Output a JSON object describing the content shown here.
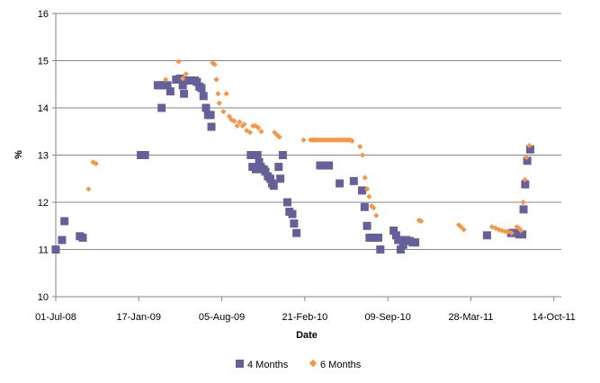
{
  "chart_data": {
    "type": "scatter",
    "title": "",
    "xlabel": "Date",
    "ylabel": "%",
    "ylim": [
      10,
      16
    ],
    "yticks": [
      "10",
      "11",
      "12",
      "13",
      "14",
      "15",
      "16"
    ],
    "xlim": [
      "2008-07-01",
      "2011-11-01"
    ],
    "xticks": [
      "01-Jul-08",
      "17-Jan-09",
      "05-Aug-09",
      "21-Feb-10",
      "09-Sep-10",
      "28-Mar-11",
      "14-Oct-11"
    ],
    "grid": "horizontal",
    "legend_position": "bottom",
    "series": [
      {
        "name": "4 Months",
        "color": "#65609A",
        "marker": "square",
        "points": [
          [
            "2008-07-01",
            11.0
          ],
          [
            "2008-07-16",
            11.2
          ],
          [
            "2008-07-22",
            11.6
          ],
          [
            "2008-08-28",
            11.28
          ],
          [
            "2008-09-04",
            11.25
          ],
          [
            "2009-01-22",
            13.0
          ],
          [
            "2009-02-01",
            13.0
          ],
          [
            "2009-03-04",
            14.48
          ],
          [
            "2009-03-11",
            14.48
          ],
          [
            "2009-03-13",
            14.0
          ],
          [
            "2009-03-19",
            14.48
          ],
          [
            "2009-03-27",
            14.48
          ],
          [
            "2009-04-03",
            14.35
          ],
          [
            "2009-04-17",
            14.6
          ],
          [
            "2009-04-26",
            14.62
          ],
          [
            "2009-05-03",
            14.48
          ],
          [
            "2009-05-06",
            14.3
          ],
          [
            "2009-05-10",
            14.58
          ],
          [
            "2009-05-17",
            14.58
          ],
          [
            "2009-05-24",
            14.58
          ],
          [
            "2009-06-01",
            14.58
          ],
          [
            "2009-06-06",
            14.55
          ],
          [
            "2009-06-12",
            14.45
          ],
          [
            "2009-06-17",
            14.42
          ],
          [
            "2009-06-22",
            14.25
          ],
          [
            "2009-06-28",
            14.0
          ],
          [
            "2009-07-03",
            13.85
          ],
          [
            "2009-07-09",
            13.85
          ],
          [
            "2009-07-11",
            13.6
          ],
          [
            "2009-10-14",
            13.0
          ],
          [
            "2009-10-18",
            12.75
          ],
          [
            "2009-10-26",
            12.7
          ],
          [
            "2009-10-30",
            13.0
          ],
          [
            "2009-11-03",
            12.85
          ],
          [
            "2009-11-07",
            12.75
          ],
          [
            "2009-11-14",
            12.7
          ],
          [
            "2009-11-18",
            12.65
          ],
          [
            "2009-11-24",
            12.55
          ],
          [
            "2009-11-30",
            12.5
          ],
          [
            "2009-12-04",
            12.4
          ],
          [
            "2009-12-08",
            12.35
          ],
          [
            "2009-12-20",
            12.75
          ],
          [
            "2009-12-24",
            12.5
          ],
          [
            "2009-12-30",
            13.0
          ],
          [
            "2010-01-10",
            12.0
          ],
          [
            "2010-01-15",
            11.8
          ],
          [
            "2010-01-22",
            11.75
          ],
          [
            "2010-01-26",
            11.55
          ],
          [
            "2010-02-01",
            11.35
          ],
          [
            "2010-03-30",
            12.78
          ],
          [
            "2010-04-08",
            12.78
          ],
          [
            "2010-04-20",
            12.78
          ],
          [
            "2010-05-16",
            12.4
          ],
          [
            "2010-06-19",
            12.45
          ],
          [
            "2010-07-09",
            12.25
          ],
          [
            "2010-07-15",
            11.9
          ],
          [
            "2010-07-21",
            11.5
          ],
          [
            "2010-07-27",
            11.25
          ],
          [
            "2010-08-06",
            11.25
          ],
          [
            "2010-08-17",
            11.25
          ],
          [
            "2010-08-22",
            11.0
          ],
          [
            "2010-09-23",
            11.4
          ],
          [
            "2010-09-29",
            11.3
          ],
          [
            "2010-10-04",
            11.2
          ],
          [
            "2010-10-10",
            11.0
          ],
          [
            "2010-10-16",
            11.1
          ],
          [
            "2010-10-23",
            11.2
          ],
          [
            "2010-11-01",
            11.18
          ],
          [
            "2010-11-08",
            11.15
          ],
          [
            "2010-11-14",
            11.15
          ],
          [
            "2011-05-06",
            11.3
          ],
          [
            "2011-07-03",
            11.35
          ],
          [
            "2011-07-08",
            11.35
          ],
          [
            "2011-07-14",
            11.35
          ],
          [
            "2011-07-23",
            11.32
          ],
          [
            "2011-07-30",
            11.32
          ],
          [
            "2011-08-02",
            11.85
          ],
          [
            "2011-08-06",
            12.38
          ],
          [
            "2011-08-11",
            12.88
          ],
          [
            "2011-08-18",
            13.12
          ]
        ]
      },
      {
        "name": "6 Months",
        "color": "#F79646",
        "marker": "diamond",
        "points": [
          [
            "2008-09-18",
            12.28
          ],
          [
            "2008-09-29",
            12.85
          ],
          [
            "2008-10-06",
            12.82
          ],
          [
            "2009-03-23",
            14.6
          ],
          [
            "2009-04-23",
            14.98
          ],
          [
            "2009-05-03",
            14.62
          ],
          [
            "2009-05-11",
            14.72
          ],
          [
            "2009-07-14",
            14.95
          ],
          [
            "2009-07-19",
            14.92
          ],
          [
            "2009-07-23",
            14.6
          ],
          [
            "2009-07-27",
            14.3
          ],
          [
            "2009-07-30",
            14.1
          ],
          [
            "2009-08-09",
            13.92
          ],
          [
            "2009-08-16",
            14.3
          ],
          [
            "2009-08-23",
            13.82
          ],
          [
            "2009-08-28",
            13.75
          ],
          [
            "2009-09-04",
            13.72
          ],
          [
            "2009-09-11",
            13.62
          ],
          [
            "2009-09-17",
            13.7
          ],
          [
            "2009-09-24",
            13.62
          ],
          [
            "2009-09-28",
            13.65
          ],
          [
            "2009-10-04",
            13.52
          ],
          [
            "2009-10-12",
            13.48
          ],
          [
            "2009-10-19",
            13.62
          ],
          [
            "2009-10-25",
            13.62
          ],
          [
            "2009-11-01",
            13.58
          ],
          [
            "2009-11-08",
            13.5
          ],
          [
            "2009-12-10",
            13.48
          ],
          [
            "2009-12-17",
            13.42
          ],
          [
            "2009-12-22",
            13.38
          ],
          [
            "2010-02-18",
            13.32
          ],
          [
            "2010-03-07",
            13.32
          ],
          [
            "2010-03-12",
            13.32
          ],
          [
            "2010-03-17",
            13.32
          ],
          [
            "2010-03-22",
            13.32
          ],
          [
            "2010-03-27",
            13.32
          ],
          [
            "2010-04-01",
            13.32
          ],
          [
            "2010-04-06",
            13.32
          ],
          [
            "2010-04-11",
            13.32
          ],
          [
            "2010-04-16",
            13.32
          ],
          [
            "2010-04-21",
            13.32
          ],
          [
            "2010-04-26",
            13.32
          ],
          [
            "2010-05-01",
            13.32
          ],
          [
            "2010-05-06",
            13.32
          ],
          [
            "2010-05-11",
            13.32
          ],
          [
            "2010-05-16",
            13.32
          ],
          [
            "2010-05-21",
            13.32
          ],
          [
            "2010-05-26",
            13.32
          ],
          [
            "2010-05-31",
            13.32
          ],
          [
            "2010-06-05",
            13.32
          ],
          [
            "2010-06-10",
            13.32
          ],
          [
            "2010-06-15",
            13.3
          ],
          [
            "2010-07-04",
            13.18
          ],
          [
            "2010-07-10",
            13.0
          ],
          [
            "2010-07-16",
            12.52
          ],
          [
            "2010-07-21",
            12.28
          ],
          [
            "2010-07-26",
            12.12
          ],
          [
            "2010-08-01",
            11.92
          ],
          [
            "2010-08-06",
            11.88
          ],
          [
            "2010-08-12",
            11.72
          ],
          [
            "2010-11-23",
            11.62
          ],
          [
            "2010-11-28",
            11.6
          ],
          [
            "2011-02-27",
            11.52
          ],
          [
            "2011-03-04",
            11.48
          ],
          [
            "2011-03-11",
            11.42
          ],
          [
            "2011-05-18",
            11.48
          ],
          [
            "2011-05-27",
            11.45
          ],
          [
            "2011-06-04",
            11.42
          ],
          [
            "2011-06-11",
            11.4
          ],
          [
            "2011-06-19",
            11.38
          ],
          [
            "2011-06-26",
            11.38
          ],
          [
            "2011-07-04",
            11.35
          ],
          [
            "2011-07-17",
            11.48
          ],
          [
            "2011-07-22",
            11.45
          ],
          [
            "2011-07-27",
            11.4
          ],
          [
            "2011-08-01",
            12.0
          ],
          [
            "2011-08-05",
            12.48
          ],
          [
            "2011-08-09",
            12.95
          ],
          [
            "2011-08-16",
            13.2
          ]
        ]
      }
    ]
  }
}
